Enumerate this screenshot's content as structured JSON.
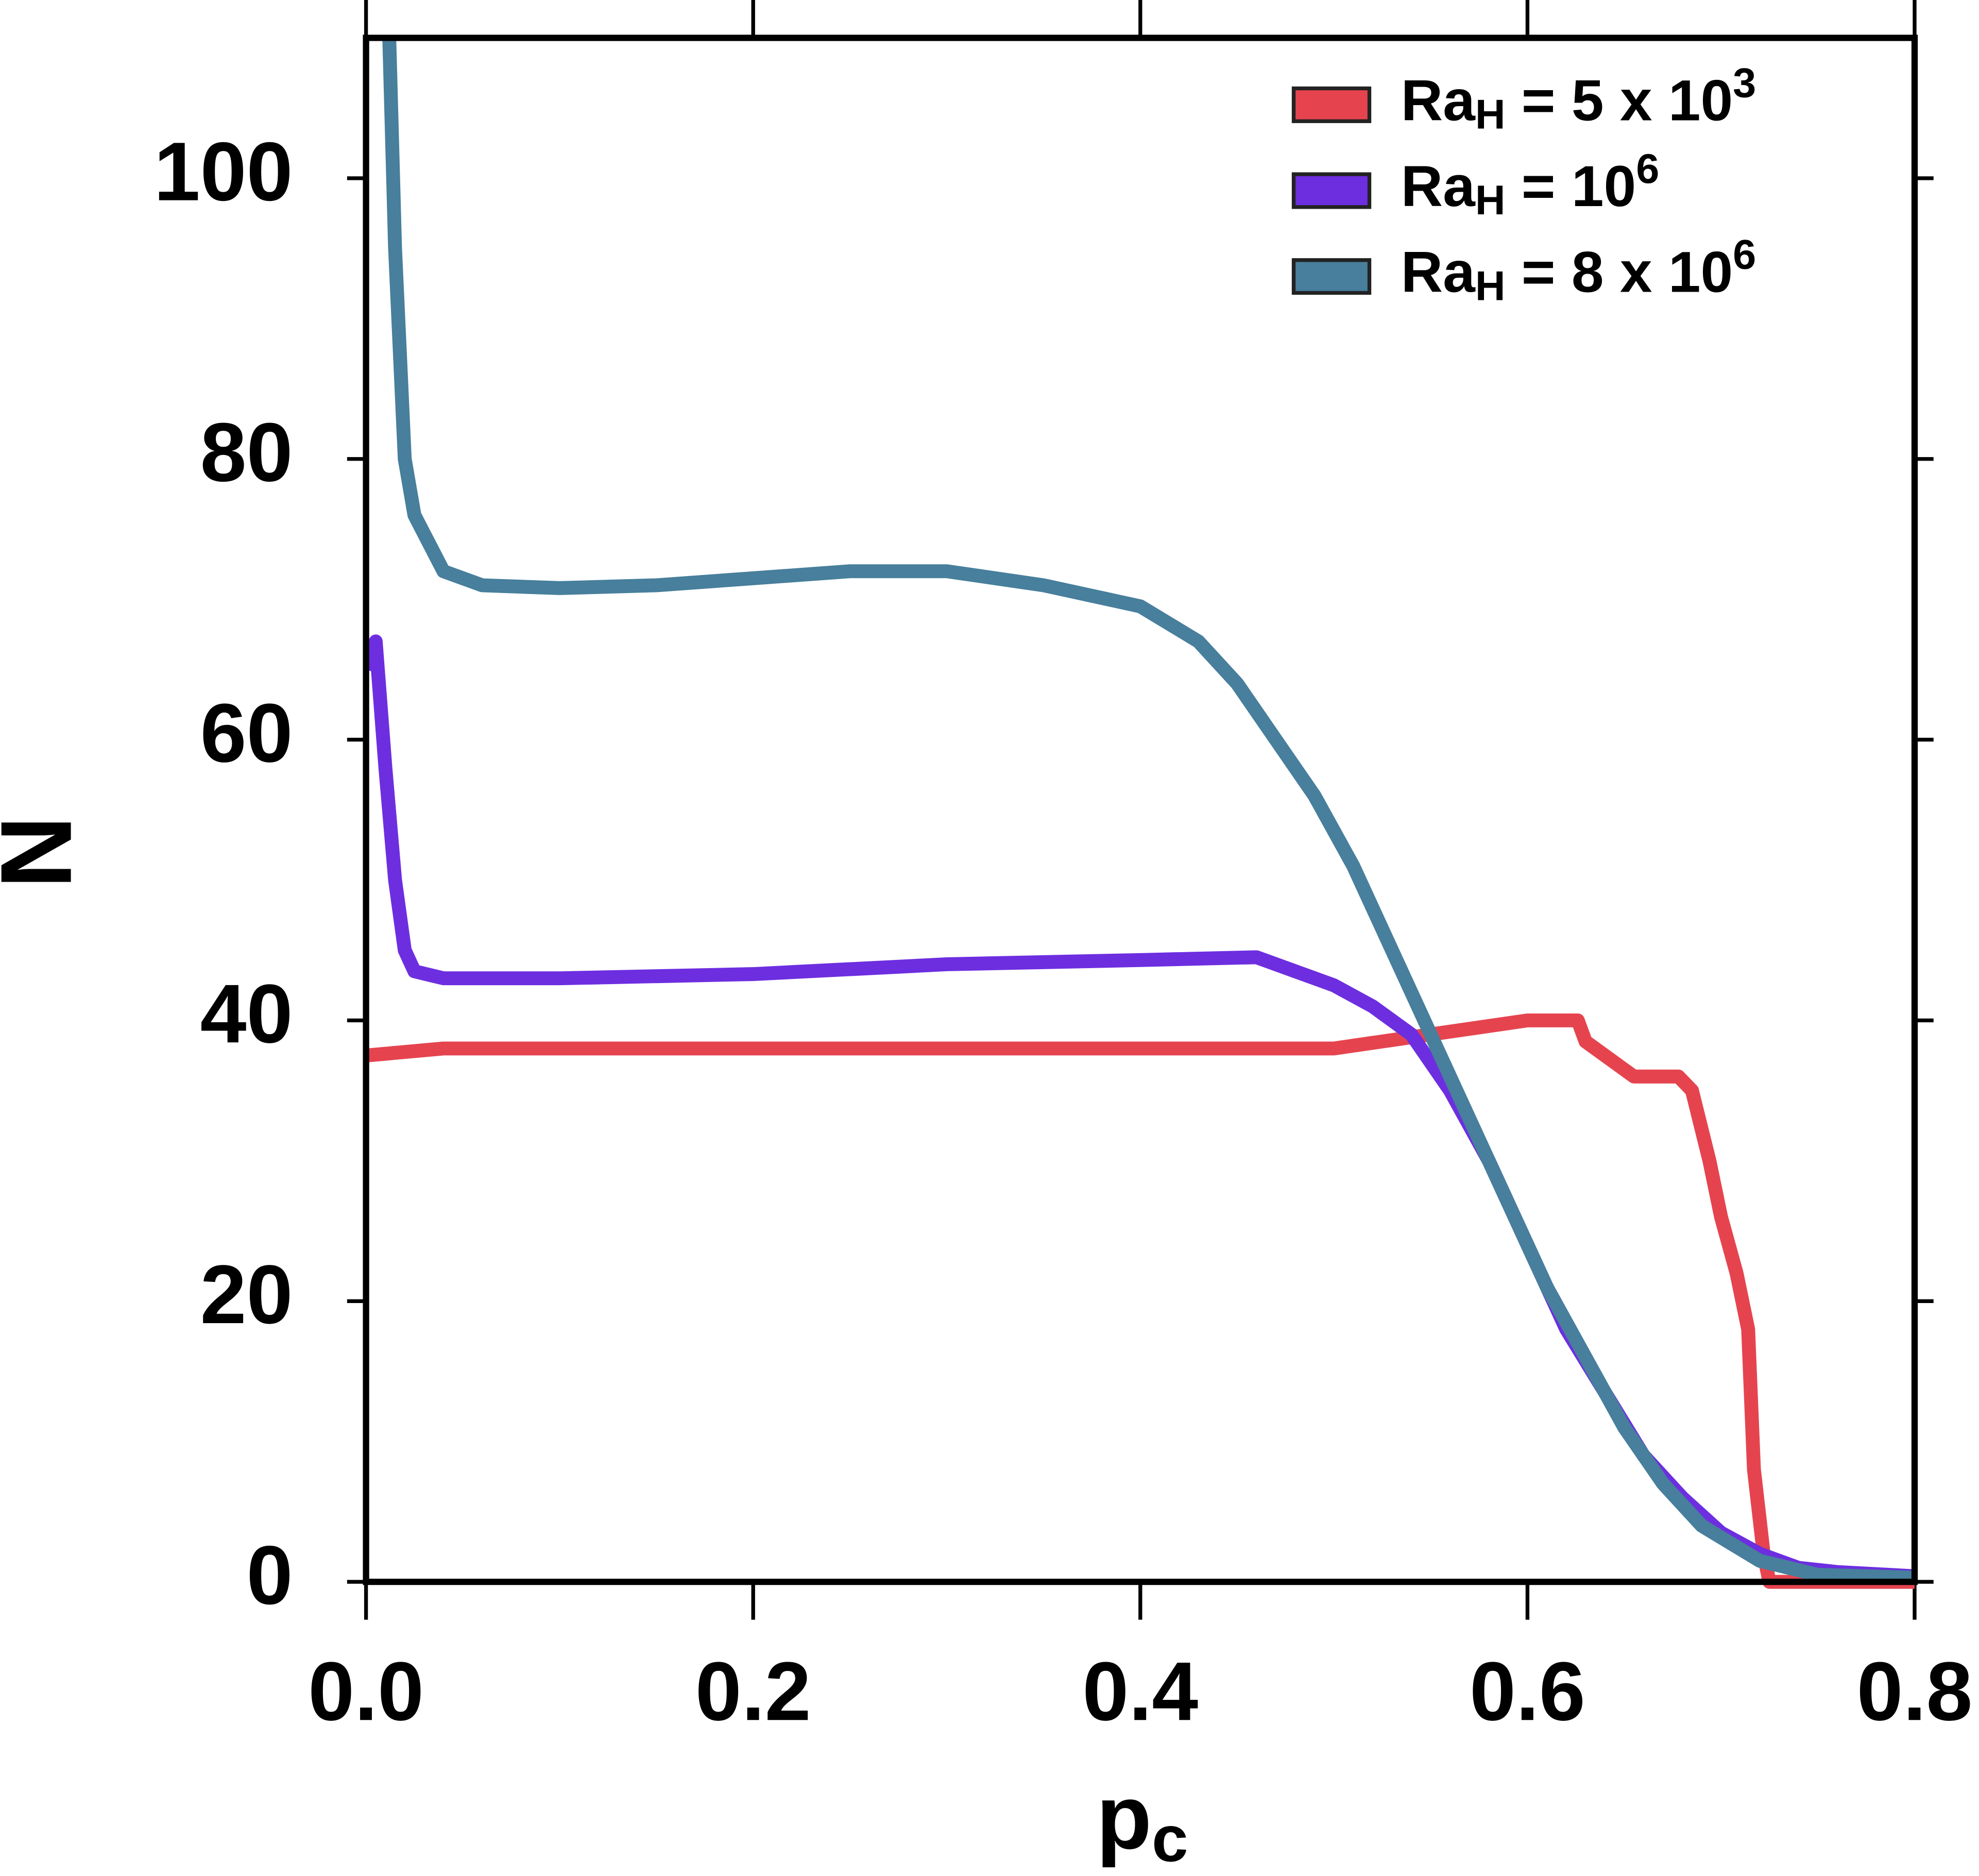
{
  "chart_data": {
    "type": "line",
    "x_label": "p_c",
    "y_label": "N",
    "xlim": [
      0,
      0.8
    ],
    "ylim": [
      0,
      110
    ],
    "xticks": [
      {
        "value": 0,
        "label": "0.0"
      },
      0.2,
      0.4,
      0.6,
      0.8
    ],
    "yticks": [
      0,
      20,
      40,
      60,
      80,
      100
    ],
    "legend": "upper right",
    "series": [
      {
        "name": "Ra_H = 5 x 10^3",
        "color": "#e5444f",
        "x": [
          0,
          0.04,
          0.5,
          0.55,
          0.6,
          0.626,
          0.63,
          0.64,
          0.655,
          0.678,
          0.685,
          0.694,
          0.7,
          0.708,
          0.714,
          0.717,
          0.722,
          0.725,
          0.8
        ],
        "values": [
          37.5,
          38,
          38,
          39,
          40,
          40,
          38.5,
          37.5,
          36,
          36,
          35,
          30,
          26,
          22,
          18,
          8,
          2,
          0,
          0
        ]
      },
      {
        "name": "Ra_H = 10^6",
        "color": "#6d2ee0",
        "x": [
          0,
          0.005,
          0.01,
          0.015,
          0.02,
          0.025,
          0.04,
          0.1,
          0.2,
          0.3,
          0.4,
          0.46,
          0.5,
          0.52,
          0.54,
          0.56,
          0.58,
          0.6,
          0.62,
          0.64,
          0.66,
          0.68,
          0.7,
          0.72,
          0.74,
          0.76,
          0.8
        ],
        "values": [
          65,
          67,
          58,
          50,
          45,
          43.5,
          43,
          43,
          43.3,
          44,
          44.3,
          44.5,
          42.5,
          41,
          39,
          35,
          30,
          24,
          18,
          13.5,
          9,
          6,
          3.5,
          2,
          1,
          0.7,
          0.4
        ]
      },
      {
        "name": "Ra_H = 8 x 10^6",
        "color": "#477f9c",
        "x": [
          0.012,
          0.015,
          0.02,
          0.025,
          0.04,
          0.06,
          0.1,
          0.15,
          0.2,
          0.25,
          0.3,
          0.35,
          0.4,
          0.43,
          0.45,
          0.47,
          0.49,
          0.51,
          0.53,
          0.55,
          0.57,
          0.59,
          0.61,
          0.63,
          0.65,
          0.67,
          0.69,
          0.72,
          0.75,
          0.8
        ],
        "values": [
          110,
          95,
          80,
          76,
          72,
          71,
          70.8,
          71,
          71.5,
          72,
          72,
          71,
          69.5,
          67,
          64,
          60,
          56,
          51,
          45,
          39,
          33,
          27,
          21,
          16,
          11,
          7,
          4,
          1.5,
          0.5,
          0.3
        ]
      }
    ]
  }
}
